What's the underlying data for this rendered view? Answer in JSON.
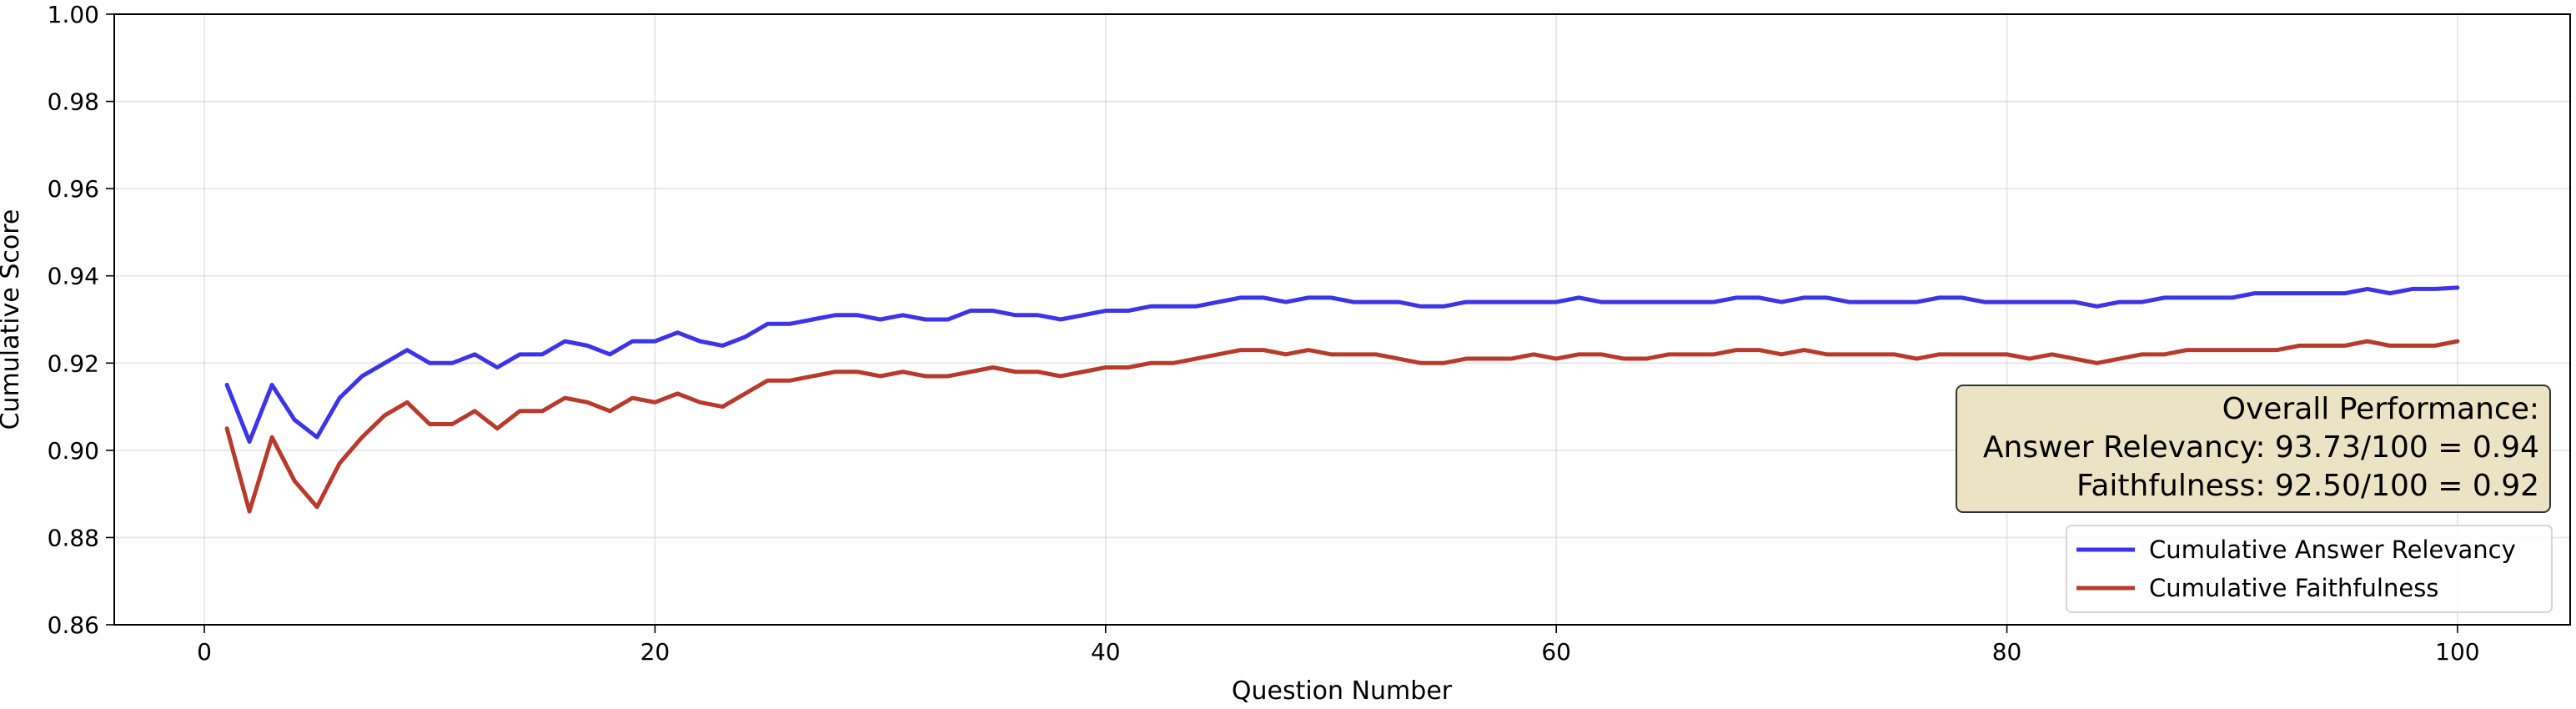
{
  "chart_data": {
    "type": "line",
    "title": "",
    "xlabel": "Question Number",
    "ylabel": "Cumulative Score",
    "xlim": [
      -4,
      105
    ],
    "ylim": [
      0.86,
      1.0
    ],
    "xticks": [
      0,
      20,
      40,
      60,
      80,
      100
    ],
    "yticks": [
      0.86,
      0.88,
      0.9,
      0.92,
      0.94,
      0.96,
      0.98,
      1.0
    ],
    "xtick_labels": [
      "0",
      "20",
      "40",
      "60",
      "80",
      "100"
    ],
    "ytick_labels": [
      "0.86",
      "0.88",
      "0.90",
      "0.92",
      "0.94",
      "0.96",
      "0.98",
      "1.00"
    ],
    "grid": true,
    "legend_position": "lower-right",
    "series": [
      {
        "name": "Cumulative Answer Relevancy",
        "color": "#3b34e8",
        "x": [
          1,
          2,
          3,
          4,
          5,
          6,
          7,
          8,
          9,
          10,
          11,
          12,
          13,
          14,
          15,
          16,
          17,
          18,
          19,
          20,
          21,
          22,
          23,
          24,
          25,
          26,
          27,
          28,
          29,
          30,
          31,
          32,
          33,
          34,
          35,
          36,
          37,
          38,
          39,
          40,
          41,
          42,
          43,
          44,
          45,
          46,
          47,
          48,
          49,
          50,
          51,
          52,
          53,
          54,
          55,
          56,
          57,
          58,
          59,
          60,
          61,
          62,
          63,
          64,
          65,
          66,
          67,
          68,
          69,
          70,
          71,
          72,
          73,
          74,
          75,
          76,
          77,
          78,
          79,
          80,
          81,
          82,
          83,
          84,
          85,
          86,
          87,
          88,
          89,
          90,
          91,
          92,
          93,
          94,
          95,
          96,
          97,
          98,
          99,
          100
        ],
        "values": [
          0.915,
          0.902,
          0.915,
          0.907,
          0.903,
          0.912,
          0.917,
          0.92,
          0.923,
          0.92,
          0.92,
          0.922,
          0.919,
          0.922,
          0.922,
          0.925,
          0.924,
          0.922,
          0.925,
          0.925,
          0.927,
          0.925,
          0.924,
          0.926,
          0.929,
          0.929,
          0.93,
          0.931,
          0.931,
          0.93,
          0.931,
          0.93,
          0.93,
          0.932,
          0.932,
          0.931,
          0.931,
          0.93,
          0.931,
          0.932,
          0.932,
          0.933,
          0.933,
          0.933,
          0.934,
          0.935,
          0.935,
          0.934,
          0.935,
          0.935,
          0.934,
          0.934,
          0.934,
          0.933,
          0.933,
          0.934,
          0.934,
          0.934,
          0.934,
          0.934,
          0.935,
          0.934,
          0.934,
          0.934,
          0.934,
          0.934,
          0.934,
          0.935,
          0.935,
          0.934,
          0.935,
          0.935,
          0.934,
          0.934,
          0.934,
          0.934,
          0.935,
          0.935,
          0.934,
          0.934,
          0.934,
          0.934,
          0.934,
          0.933,
          0.934,
          0.934,
          0.935,
          0.935,
          0.935,
          0.935,
          0.936,
          0.936,
          0.936,
          0.936,
          0.936,
          0.937,
          0.936,
          0.937,
          0.937,
          0.9373
        ]
      },
      {
        "name": "Cumulative Faithfulness",
        "color": "#b83a2b",
        "x": [
          1,
          2,
          3,
          4,
          5,
          6,
          7,
          8,
          9,
          10,
          11,
          12,
          13,
          14,
          15,
          16,
          17,
          18,
          19,
          20,
          21,
          22,
          23,
          24,
          25,
          26,
          27,
          28,
          29,
          30,
          31,
          32,
          33,
          34,
          35,
          36,
          37,
          38,
          39,
          40,
          41,
          42,
          43,
          44,
          45,
          46,
          47,
          48,
          49,
          50,
          51,
          52,
          53,
          54,
          55,
          56,
          57,
          58,
          59,
          60,
          61,
          62,
          63,
          64,
          65,
          66,
          67,
          68,
          69,
          70,
          71,
          72,
          73,
          74,
          75,
          76,
          77,
          78,
          79,
          80,
          81,
          82,
          83,
          84,
          85,
          86,
          87,
          88,
          89,
          90,
          91,
          92,
          93,
          94,
          95,
          96,
          97,
          98,
          99,
          100
        ],
        "values": [
          0.905,
          0.886,
          0.903,
          0.893,
          0.887,
          0.897,
          0.903,
          0.908,
          0.911,
          0.906,
          0.906,
          0.909,
          0.905,
          0.909,
          0.909,
          0.912,
          0.911,
          0.909,
          0.912,
          0.911,
          0.913,
          0.911,
          0.91,
          0.913,
          0.916,
          0.916,
          0.917,
          0.918,
          0.918,
          0.917,
          0.918,
          0.917,
          0.917,
          0.918,
          0.919,
          0.918,
          0.918,
          0.917,
          0.918,
          0.919,
          0.919,
          0.92,
          0.92,
          0.921,
          0.922,
          0.923,
          0.923,
          0.922,
          0.923,
          0.922,
          0.922,
          0.922,
          0.921,
          0.92,
          0.92,
          0.921,
          0.921,
          0.921,
          0.922,
          0.921,
          0.922,
          0.922,
          0.921,
          0.921,
          0.922,
          0.922,
          0.922,
          0.923,
          0.923,
          0.922,
          0.923,
          0.922,
          0.922,
          0.922,
          0.922,
          0.921,
          0.922,
          0.922,
          0.922,
          0.922,
          0.921,
          0.922,
          0.921,
          0.92,
          0.921,
          0.922,
          0.922,
          0.923,
          0.923,
          0.923,
          0.923,
          0.923,
          0.924,
          0.924,
          0.924,
          0.925,
          0.924,
          0.924,
          0.924,
          0.925
        ]
      }
    ],
    "annotation": {
      "lines": [
        "Overall Performance:",
        "Answer Relevancy: 93.73/100 = 0.94",
        "Faithfulness: 92.50/100 = 0.92"
      ],
      "box_color": "#ece3c4",
      "border_color": "#333333",
      "position": "right"
    }
  }
}
